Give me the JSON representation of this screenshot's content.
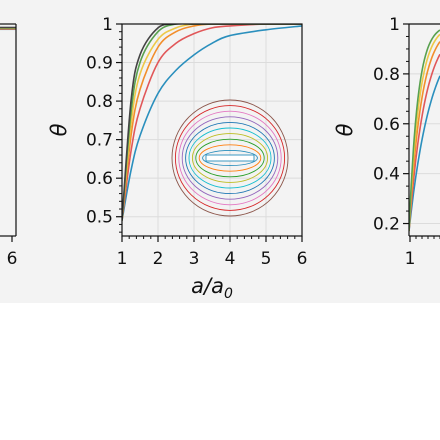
{
  "chart_data": [
    {
      "type": "line",
      "partial": true,
      "x_tick_labels": [
        "6"
      ],
      "series_colors": [
        "#2a8fbd",
        "#e15759",
        "#f28e2b",
        "#edc948",
        "#59a14f",
        "#444444"
      ]
    },
    {
      "type": "line",
      "xlabel": "a/a₀",
      "xlabel_main": "a/a",
      "xlabel_sub": "0",
      "ylabel": "θ",
      "xlim": [
        1,
        6
      ],
      "ylim": [
        0.45,
        1.0
      ],
      "x_ticks": [
        1,
        2,
        3,
        4,
        5,
        6
      ],
      "x_tick_labels": [
        "1",
        "2",
        "3",
        "4",
        "5",
        "6"
      ],
      "y_ticks": [
        0.5,
        0.6,
        0.7,
        0.8,
        0.9,
        1.0
      ],
      "y_tick_labels": [
        "0.5",
        "0.6",
        "0.7",
        "0.8",
        "0.9",
        "1"
      ],
      "grid": true,
      "series": [
        {
          "color": "#2a8fbd",
          "x": [
            1,
            1.25,
            1.5,
            2,
            2.5,
            3,
            3.5,
            4,
            5,
            6
          ],
          "values": [
            0.49,
            0.62,
            0.71,
            0.82,
            0.88,
            0.92,
            0.95,
            0.97,
            0.985,
            0.995
          ]
        },
        {
          "color": "#e15759",
          "x": [
            1,
            1.25,
            1.5,
            2,
            2.5,
            3,
            3.5,
            4,
            5,
            6
          ],
          "values": [
            0.49,
            0.67,
            0.78,
            0.9,
            0.95,
            0.975,
            0.99,
            0.995,
            1.0,
            1.0
          ]
        },
        {
          "color": "#f28e2b",
          "x": [
            1,
            1.25,
            1.5,
            2,
            2.5,
            3,
            3.5,
            4,
            5,
            6
          ],
          "values": [
            0.49,
            0.71,
            0.83,
            0.94,
            0.98,
            0.995,
            1.0,
            1.0,
            1.0,
            1.0
          ]
        },
        {
          "color": "#edc948",
          "x": [
            1,
            1.25,
            1.5,
            2,
            2.5,
            3,
            3.5,
            4,
            5,
            6
          ],
          "values": [
            0.49,
            0.74,
            0.87,
            0.96,
            0.99,
            1.0,
            1.0,
            1.0,
            1.0,
            1.0
          ]
        },
        {
          "color": "#59a14f",
          "x": [
            1,
            1.25,
            1.5,
            2,
            2.5,
            3,
            3.5,
            4,
            5,
            6
          ],
          "values": [
            0.49,
            0.77,
            0.9,
            0.98,
            1.0,
            1.0,
            1.0,
            1.0,
            1.0,
            1.0
          ]
        },
        {
          "color": "#444444",
          "x": [
            1,
            1.25,
            1.5,
            2,
            2.5,
            3,
            3.5,
            4,
            5,
            6
          ],
          "values": [
            0.49,
            0.8,
            0.92,
            0.99,
            1.0,
            1.0,
            1.0,
            1.0,
            1.0,
            1.0
          ]
        }
      ],
      "inset": {
        "shape": "nested contours around a horizontal slit",
        "contour_colors": [
          "#8c564b",
          "#d62728",
          "#e377c2",
          "#9467bd",
          "#1f77b4",
          "#17becf",
          "#bcbd22",
          "#2ca02c",
          "#ff7f0e",
          "#2a8fbd"
        ]
      }
    },
    {
      "type": "line",
      "partial": true,
      "ylabel": "θ",
      "ylim": [
        0.15,
        1.0
      ],
      "y_ticks": [
        0.2,
        0.4,
        0.6,
        0.8,
        1.0
      ],
      "y_tick_labels": [
        "0.2",
        "0.4",
        "0.6",
        "0.8",
        "1"
      ],
      "x_tick_labels": [
        "1"
      ],
      "series_colors": [
        "#2a8fbd",
        "#e15759",
        "#f28e2b",
        "#edc948",
        "#59a14f"
      ]
    }
  ]
}
